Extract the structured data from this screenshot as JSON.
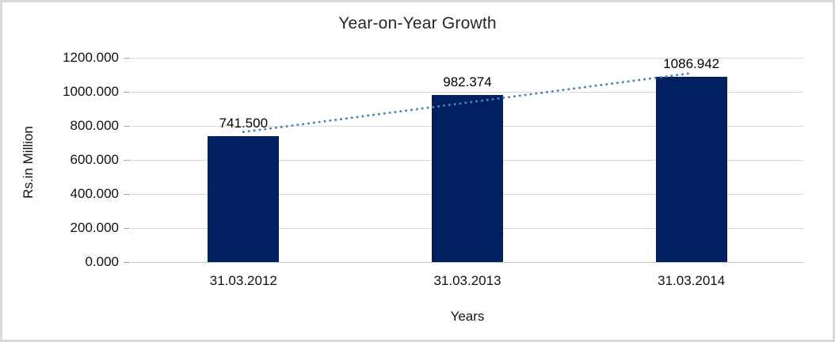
{
  "frame": {
    "border_color": "#d9d9d9",
    "background": "#ffffff"
  },
  "chart_data": {
    "type": "bar",
    "title": "Year-on-Year Growth",
    "xlabel": "Years",
    "ylabel": "Rs.in Million",
    "categories": [
      "31.03.2012",
      "31.03.2013",
      "31.03.2014"
    ],
    "values": [
      741.5,
      982.374,
      1086.942
    ],
    "data_labels": [
      "741.500",
      "982.374",
      "1086.942"
    ],
    "y_ticks": [
      "0.000",
      "200.000",
      "400.000",
      "600.000",
      "800.000",
      "1000.000",
      "1200.000"
    ],
    "ylim": [
      0,
      1200
    ],
    "grid": true,
    "legend": "none",
    "bar_color": "#002060",
    "gridline_color": "#d9d9d9",
    "trendline": {
      "type": "linear",
      "style": "dotted",
      "color": "#4f81bd"
    }
  }
}
